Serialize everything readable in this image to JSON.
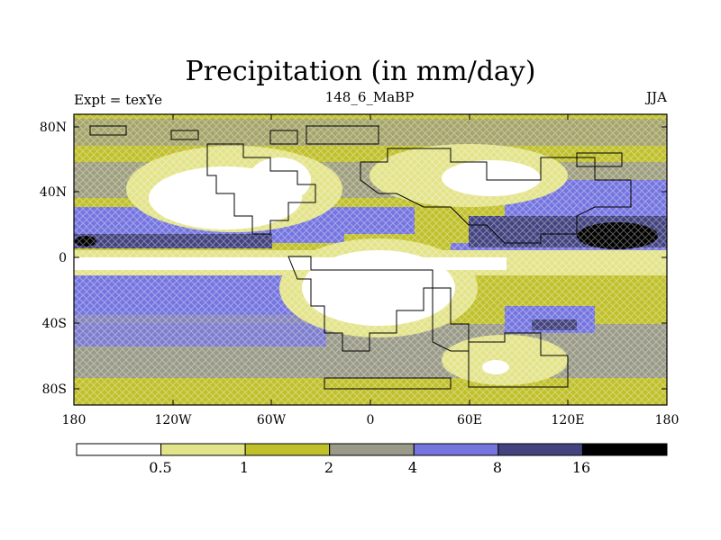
{
  "title": "Precipitation (in mm/day)",
  "subtitle_left": "Expt = texYe",
  "subtitle_center": "148_6_MaBP",
  "subtitle_right": "JJA",
  "lat_ticks": [
    "80N",
    "40N",
    "0",
    "40S",
    "80S"
  ],
  "lon_ticks": [
    "180",
    "120W",
    "60W",
    "0",
    "60E",
    "120E",
    "180"
  ],
  "colorbar": {
    "labels": [
      "0.5",
      "1",
      "2",
      "4",
      "8",
      "16"
    ],
    "colors": [
      "#ffffff",
      "#e3e38a",
      "#c0c02b",
      "#9a9a88",
      "#7575e0",
      "#434380",
      "#000000"
    ]
  }
}
